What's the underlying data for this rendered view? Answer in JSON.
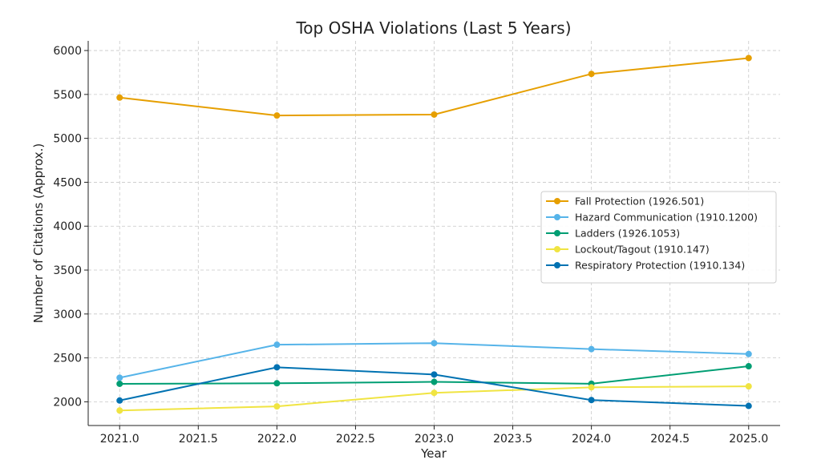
{
  "chart_data": {
    "type": "line",
    "title": "Top OSHA Violations (Last 5 Years)",
    "xlabel": "Year",
    "ylabel": "Number of Citations (Approx.)",
    "x": [
      2021,
      2022,
      2023,
      2024,
      2025
    ],
    "xlim": [
      2020.8,
      2025.2
    ],
    "ylim": [
      1730,
      6110
    ],
    "xticks": [
      "2021.0",
      "2021.5",
      "2022.0",
      "2022.5",
      "2023.0",
      "2023.5",
      "2024.0",
      "2024.5",
      "2025.0"
    ],
    "xtick_values": [
      2021.0,
      2021.5,
      2022.0,
      2022.5,
      2023.0,
      2023.5,
      2024.0,
      2024.5,
      2025.0
    ],
    "yticks": [
      "2000",
      "2500",
      "3000",
      "3500",
      "4000",
      "4500",
      "5000",
      "5500",
      "6000"
    ],
    "ytick_values": [
      2000,
      2500,
      3000,
      3500,
      4000,
      4500,
      5000,
      5500,
      6000
    ],
    "grid": true,
    "legend_position": "center-right",
    "series": [
      {
        "name": "Fall Protection (1926.501)",
        "color": "#E69F00",
        "values": [
          5464,
          5260,
          5271,
          5734,
          5914
        ]
      },
      {
        "name": "Hazard Communication (1910.1200)",
        "color": "#56B4E9",
        "values": [
          2274,
          2650,
          2668,
          2600,
          2544
        ]
      },
      {
        "name": "Ladders (1926.1053)",
        "color": "#009E73",
        "values": [
          2205,
          2211,
          2227,
          2206,
          2405
        ]
      },
      {
        "name": "Lockout/Tagout (1910.147)",
        "color": "#F0E442",
        "values": [
          1901,
          1948,
          2102,
          2165,
          2176
        ]
      },
      {
        "name": "Respiratory Protection (1910.134)",
        "color": "#0072B2",
        "values": [
          2015,
          2393,
          2311,
          2020,
          1953
        ]
      }
    ]
  }
}
